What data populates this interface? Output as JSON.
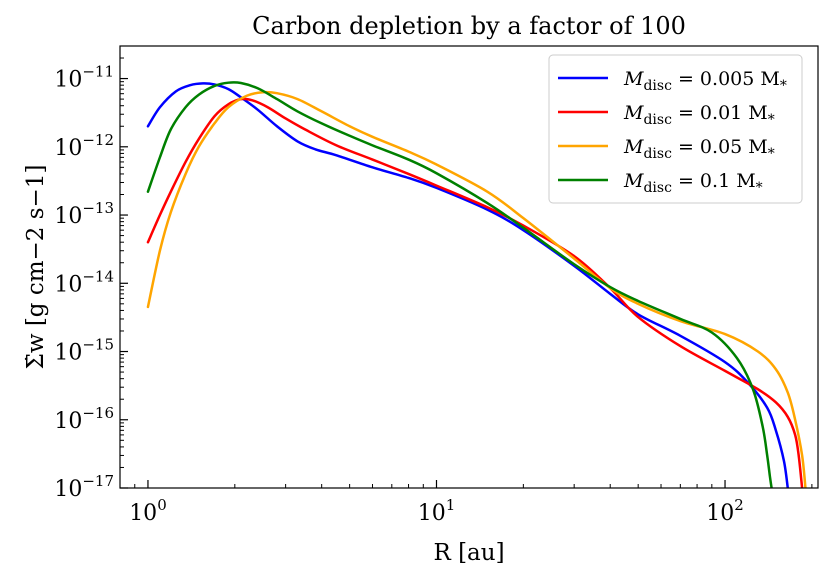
{
  "chart_data": {
    "type": "line",
    "title": "Carbon depletion by a factor of 100",
    "xlabel": "R [au]",
    "ylabel": "Σ̇w [g cm−2 s−1]",
    "xscale": "log",
    "yscale": "log",
    "xlim": [
      0.8,
      210
    ],
    "ylim": [
      1e-17,
      3e-11
    ],
    "x_ticks": [
      {
        "value": 1,
        "base": "10",
        "exp": "0"
      },
      {
        "value": 10,
        "base": "10",
        "exp": "1"
      },
      {
        "value": 100,
        "base": "10",
        "exp": "2"
      }
    ],
    "y_ticks": [
      {
        "value": 1e-17,
        "base": "10",
        "exp": "−17"
      },
      {
        "value": 1e-16,
        "base": "10",
        "exp": "−16"
      },
      {
        "value": 1e-15,
        "base": "10",
        "exp": "−15"
      },
      {
        "value": 1e-14,
        "base": "10",
        "exp": "−14"
      },
      {
        "value": 1e-13,
        "base": "10",
        "exp": "−13"
      },
      {
        "value": 1e-12,
        "base": "10",
        "exp": "−12"
      },
      {
        "value": 1e-11,
        "base": "10",
        "exp": "−11"
      }
    ],
    "legend_position": "top-right",
    "series": [
      {
        "name": "M_disc = 0.005 M_*",
        "label_main": "M",
        "label_sub": "disc",
        "label_rest": " = 0.005 M",
        "label_star": "*",
        "color": "#0000ff",
        "x": [
          1.0,
          1.1,
          1.25,
          1.4,
          1.55,
          1.7,
          1.9,
          2.1,
          2.4,
          2.8,
          3.3,
          3.8,
          4.5,
          6,
          8,
          10,
          15,
          20,
          30,
          40,
          50,
          70,
          100,
          120,
          140,
          150,
          160,
          165
        ],
        "y": [
          2e-12,
          3.8e-12,
          6.5e-12,
          8e-12,
          8.5e-12,
          8.2e-12,
          7e-12,
          5.3e-12,
          3.5e-12,
          2e-12,
          1.2e-12,
          9.2e-13,
          7.5e-13,
          5e-13,
          3.5e-13,
          2.5e-13,
          1.2e-13,
          6e-14,
          1.8e-14,
          7e-15,
          3.5e-15,
          1.7e-15,
          7e-16,
          3.5e-16,
          1.5e-16,
          7e-17,
          2.5e-17,
          1e-17
        ]
      },
      {
        "name": "M_disc = 0.01 M_*",
        "label_main": "M",
        "label_sub": "disc",
        "label_rest": " = 0.01 M",
        "label_star": "*",
        "color": "#ff0000",
        "x": [
          1.0,
          1.1,
          1.2,
          1.35,
          1.5,
          1.7,
          1.9,
          2.1,
          2.3,
          2.6,
          3.0,
          3.5,
          4.5,
          6,
          8,
          10,
          15,
          20,
          30,
          40,
          50,
          70,
          100,
          130,
          150,
          165,
          175,
          180,
          185
        ],
        "y": [
          4e-14,
          1e-13,
          2.2e-13,
          6e-13,
          1.3e-12,
          2.8e-12,
          4.2e-12,
          5e-12,
          4.8e-12,
          3.8e-12,
          2.6e-12,
          1.8e-12,
          1.05e-12,
          6.5e-13,
          4e-13,
          2.7e-13,
          1.3e-13,
          7e-14,
          2.5e-14,
          8.5e-15,
          3.2e-15,
          1.2e-15,
          5.2e-16,
          2.8e-16,
          1.8e-16,
          1.1e-16,
          6e-17,
          3e-17,
          1e-17
        ]
      },
      {
        "name": "M_disc = 0.05 M_*",
        "label_main": "M",
        "label_sub": "disc",
        "label_rest": " = 0.05 M",
        "label_star": "*",
        "color": "#ffa500",
        "x": [
          1.0,
          1.1,
          1.2,
          1.35,
          1.5,
          1.7,
          1.9,
          2.2,
          2.5,
          2.8,
          3.3,
          4,
          5,
          6,
          8,
          10,
          15,
          20,
          30,
          40,
          50,
          70,
          100,
          130,
          150,
          165,
          175,
          185,
          190
        ],
        "y": [
          4.5e-15,
          3e-14,
          1.1e-13,
          4e-13,
          1e-12,
          2.2e-12,
          3.8e-12,
          5.6e-12,
          6.3e-12,
          6.1e-12,
          5e-12,
          3.3e-12,
          2e-12,
          1.4e-12,
          8.5e-13,
          5.5e-13,
          2.2e-13,
          9e-14,
          2.3e-14,
          8.5e-15,
          5e-15,
          2.8e-15,
          1.8e-15,
          1e-15,
          5.5e-16,
          2.5e-16,
          1e-16,
          3e-17,
          1e-17
        ]
      },
      {
        "name": "M_disc = 0.1 M_*",
        "label_main": "M",
        "label_sub": "disc",
        "label_rest": " = 0.1 M",
        "label_star": "*",
        "color": "#008000",
        "x": [
          1.0,
          1.1,
          1.2,
          1.35,
          1.5,
          1.7,
          1.9,
          2.1,
          2.4,
          2.8,
          3.3,
          4,
          5,
          6,
          8,
          10,
          15,
          20,
          30,
          40,
          50,
          70,
          90,
          110,
          125,
          135,
          140,
          143,
          145
        ],
        "y": [
          2.2e-13,
          7e-13,
          1.8e-12,
          3.8e-12,
          5.8e-12,
          7.8e-12,
          8.7e-12,
          8.6e-12,
          7.2e-12,
          5e-12,
          3.3e-12,
          2.2e-12,
          1.45e-12,
          1.05e-12,
          6.5e-13,
          4.1e-13,
          1.5e-13,
          6.5e-14,
          1.9e-14,
          8.8e-15,
          5.5e-15,
          3e-15,
          1.9e-15,
          8e-16,
          2.8e-16,
          8e-17,
          3e-17,
          1.5e-17,
          1e-17
        ]
      }
    ]
  }
}
